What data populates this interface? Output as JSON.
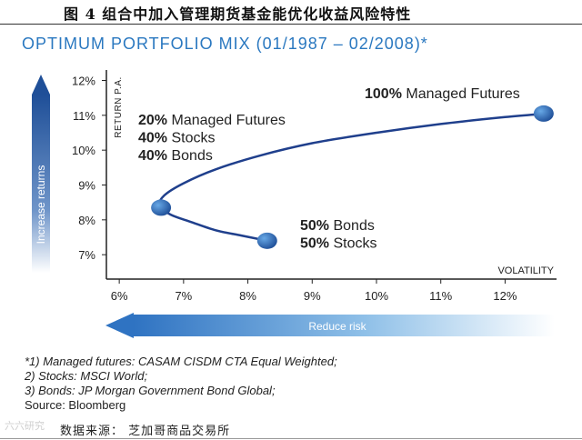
{
  "figure": {
    "caption": "图 4 组合中加入管理期货基金能优化收益风险特性",
    "source": "数据来源：  芝加哥商品交易所",
    "watermark": "六六研究"
  },
  "chart_data": {
    "type": "line",
    "title": "OPTIMUM PORTFOLIO MIX (01/1987 – 02/2008)*",
    "xlabel": "VOLATILITY",
    "ylabel": "RETURN P.A.",
    "xlim": [
      5.8,
      12.8
    ],
    "ylim": [
      6.3,
      12.3
    ],
    "x_ticks": [
      6,
      7,
      8,
      9,
      10,
      11,
      12
    ],
    "x_tick_labels": [
      "6%",
      "7%",
      "8%",
      "9%",
      "10%",
      "11%",
      "12%"
    ],
    "y_ticks": [
      7,
      8,
      9,
      10,
      11,
      12
    ],
    "y_tick_labels": [
      "7%",
      "8%",
      "9%",
      "10%",
      "11%",
      "12%"
    ],
    "grid": false,
    "series": [
      {
        "x": [
          8.3,
          7.9,
          7.5,
          7.1,
          6.8,
          6.62,
          6.7,
          7.0,
          7.5,
          8.2,
          9.0,
          10.0,
          11.0,
          12.0,
          12.65
        ],
        "y": [
          7.4,
          7.55,
          7.7,
          7.95,
          8.15,
          8.4,
          8.7,
          9.05,
          9.45,
          9.85,
          10.2,
          10.5,
          10.75,
          10.95,
          11.05
        ],
        "color": "#1f3f8c"
      }
    ],
    "points": [
      {
        "x": 6.65,
        "y": 8.35,
        "label_lines": [
          [
            "20%",
            "Managed Futures"
          ],
          [
            "40%",
            "Stocks"
          ],
          [
            "40%",
            "Bonds"
          ]
        ]
      },
      {
        "x": 8.3,
        "y": 7.4,
        "label_lines": [
          [
            "50%",
            "Bonds"
          ],
          [
            "50%",
            "Stocks"
          ]
        ]
      },
      {
        "x": 12.6,
        "y": 11.05,
        "label_lines": [
          [
            "100%",
            "Managed Futures"
          ]
        ]
      }
    ],
    "arrows": {
      "vertical_label": "Increase returns",
      "horizontal_label": "Reduce risk"
    }
  },
  "footnotes": [
    "*1) Managed futures: CASAM CISDM CTA Equal Weighted;",
    "2) Stocks: MSCI World;",
    "3) Bonds: JP Morgan Government Bond Global;",
    "Source: Bloomberg"
  ]
}
